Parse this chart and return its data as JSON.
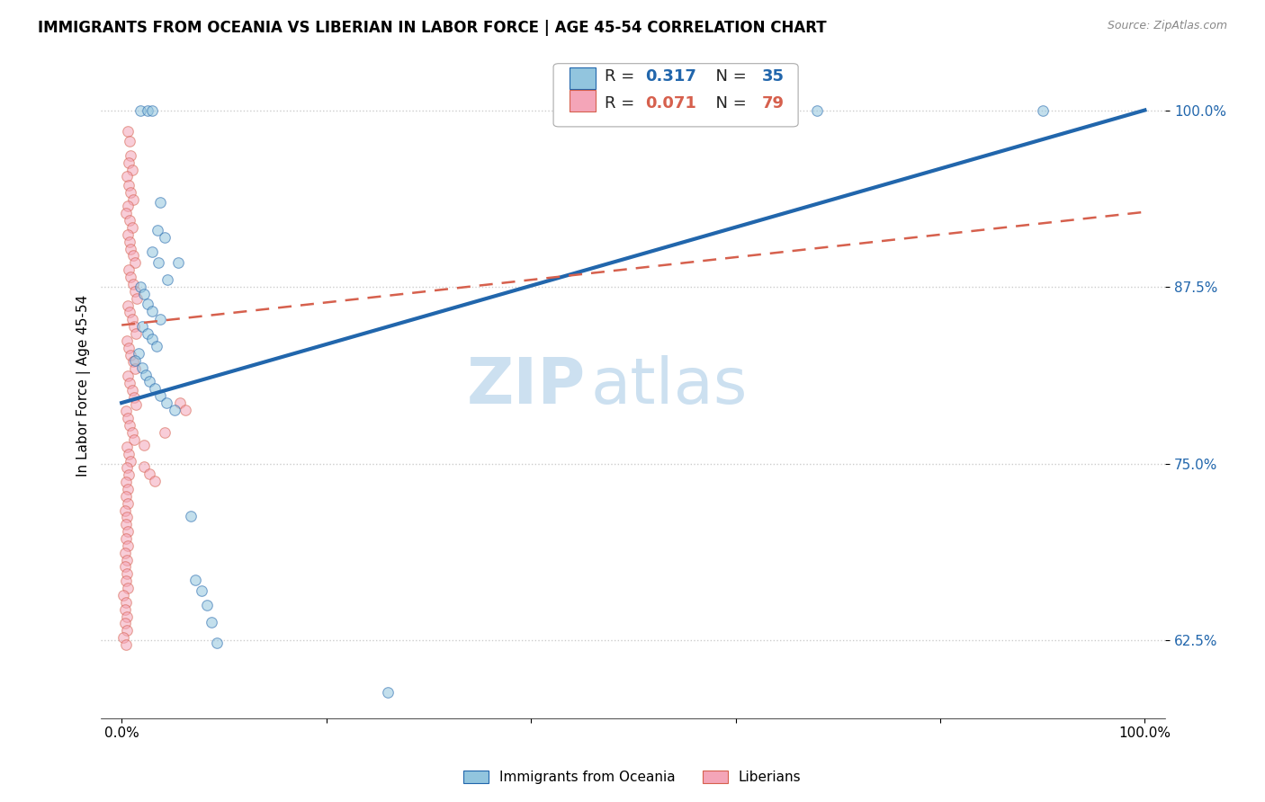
{
  "title": "IMMIGRANTS FROM OCEANIA VS LIBERIAN IN LABOR FORCE | AGE 45-54 CORRELATION CHART",
  "source_text": "Source: ZipAtlas.com",
  "ylabel": "In Labor Force | Age 45-54",
  "xlabel": "",
  "xlim": [
    -0.02,
    1.02
  ],
  "ylim": [
    0.57,
    1.04
  ],
  "yticks": [
    0.625,
    0.75,
    0.875,
    1.0
  ],
  "ytick_labels": [
    "62.5%",
    "75.0%",
    "87.5%",
    "100.0%"
  ],
  "xticks": [
    0.0,
    0.2,
    0.4,
    0.6,
    0.8,
    1.0
  ],
  "xtick_labels": [
    "0.0%",
    "",
    "",
    "",
    "",
    "100.0%"
  ],
  "watermark_zip": "ZIP",
  "watermark_atlas": "atlas",
  "blue_scatter": [
    [
      0.018,
      1.0
    ],
    [
      0.025,
      1.0
    ],
    [
      0.03,
      1.0
    ],
    [
      0.68,
      1.0
    ],
    [
      0.9,
      1.0
    ],
    [
      0.038,
      0.935
    ],
    [
      0.035,
      0.915
    ],
    [
      0.042,
      0.91
    ],
    [
      0.03,
      0.9
    ],
    [
      0.036,
      0.892
    ],
    [
      0.055,
      0.892
    ],
    [
      0.045,
      0.88
    ],
    [
      0.018,
      0.875
    ],
    [
      0.022,
      0.87
    ],
    [
      0.025,
      0.863
    ],
    [
      0.03,
      0.858
    ],
    [
      0.038,
      0.852
    ],
    [
      0.02,
      0.847
    ],
    [
      0.025,
      0.842
    ],
    [
      0.03,
      0.838
    ],
    [
      0.034,
      0.833
    ],
    [
      0.017,
      0.828
    ],
    [
      0.013,
      0.823
    ],
    [
      0.02,
      0.818
    ],
    [
      0.024,
      0.813
    ],
    [
      0.027,
      0.808
    ],
    [
      0.032,
      0.803
    ],
    [
      0.038,
      0.798
    ],
    [
      0.044,
      0.793
    ],
    [
      0.052,
      0.788
    ],
    [
      0.068,
      0.713
    ],
    [
      0.072,
      0.668
    ],
    [
      0.078,
      0.66
    ],
    [
      0.083,
      0.65
    ],
    [
      0.088,
      0.638
    ],
    [
      0.093,
      0.623
    ],
    [
      0.26,
      0.588
    ]
  ],
  "pink_scatter": [
    [
      0.006,
      0.985
    ],
    [
      0.008,
      0.978
    ],
    [
      0.009,
      0.968
    ],
    [
      0.007,
      0.963
    ],
    [
      0.01,
      0.958
    ],
    [
      0.005,
      0.953
    ],
    [
      0.007,
      0.947
    ],
    [
      0.009,
      0.942
    ],
    [
      0.011,
      0.937
    ],
    [
      0.006,
      0.932
    ],
    [
      0.004,
      0.927
    ],
    [
      0.008,
      0.922
    ],
    [
      0.01,
      0.917
    ],
    [
      0.006,
      0.912
    ],
    [
      0.008,
      0.907
    ],
    [
      0.009,
      0.902
    ],
    [
      0.011,
      0.897
    ],
    [
      0.013,
      0.892
    ],
    [
      0.007,
      0.887
    ],
    [
      0.009,
      0.882
    ],
    [
      0.011,
      0.877
    ],
    [
      0.013,
      0.872
    ],
    [
      0.015,
      0.867
    ],
    [
      0.006,
      0.862
    ],
    [
      0.008,
      0.857
    ],
    [
      0.01,
      0.852
    ],
    [
      0.012,
      0.847
    ],
    [
      0.014,
      0.842
    ],
    [
      0.005,
      0.837
    ],
    [
      0.007,
      0.832
    ],
    [
      0.009,
      0.827
    ],
    [
      0.011,
      0.822
    ],
    [
      0.013,
      0.817
    ],
    [
      0.006,
      0.812
    ],
    [
      0.008,
      0.807
    ],
    [
      0.01,
      0.802
    ],
    [
      0.012,
      0.797
    ],
    [
      0.014,
      0.792
    ],
    [
      0.004,
      0.787
    ],
    [
      0.006,
      0.782
    ],
    [
      0.008,
      0.777
    ],
    [
      0.01,
      0.772
    ],
    [
      0.012,
      0.767
    ],
    [
      0.005,
      0.762
    ],
    [
      0.007,
      0.757
    ],
    [
      0.009,
      0.752
    ],
    [
      0.005,
      0.747
    ],
    [
      0.007,
      0.742
    ],
    [
      0.004,
      0.737
    ],
    [
      0.006,
      0.732
    ],
    [
      0.004,
      0.727
    ],
    [
      0.006,
      0.722
    ],
    [
      0.003,
      0.717
    ],
    [
      0.005,
      0.712
    ],
    [
      0.004,
      0.707
    ],
    [
      0.006,
      0.702
    ],
    [
      0.004,
      0.697
    ],
    [
      0.006,
      0.692
    ],
    [
      0.003,
      0.687
    ],
    [
      0.005,
      0.682
    ],
    [
      0.003,
      0.677
    ],
    [
      0.005,
      0.672
    ],
    [
      0.004,
      0.667
    ],
    [
      0.006,
      0.662
    ],
    [
      0.002,
      0.657
    ],
    [
      0.004,
      0.652
    ],
    [
      0.003,
      0.647
    ],
    [
      0.005,
      0.642
    ],
    [
      0.003,
      0.637
    ],
    [
      0.005,
      0.632
    ],
    [
      0.002,
      0.627
    ],
    [
      0.004,
      0.622
    ],
    [
      0.022,
      0.748
    ],
    [
      0.027,
      0.743
    ],
    [
      0.032,
      0.738
    ],
    [
      0.057,
      0.793
    ],
    [
      0.062,
      0.788
    ],
    [
      0.042,
      0.772
    ],
    [
      0.022,
      0.763
    ]
  ],
  "blue_line_x": [
    0.0,
    1.0
  ],
  "blue_line_y": [
    0.793,
    1.0
  ],
  "pink_line_x": [
    0.0,
    1.0
  ],
  "pink_line_y": [
    0.848,
    0.928
  ],
  "blue_color": "#92c5de",
  "pink_color": "#f4a5b8",
  "blue_line_color": "#2166ac",
  "pink_line_color": "#d6604d",
  "background_color": "#ffffff",
  "grid_color": "#cccccc",
  "title_fontsize": 12,
  "axis_label_fontsize": 11,
  "tick_fontsize": 11,
  "legend_fontsize": 13,
  "watermark_fontsize_zip": 52,
  "watermark_fontsize_atlas": 52,
  "watermark_color": "#cce0f0",
  "scatter_size": 70,
  "scatter_alpha": 0.55,
  "scatter_linewidth": 0.8
}
